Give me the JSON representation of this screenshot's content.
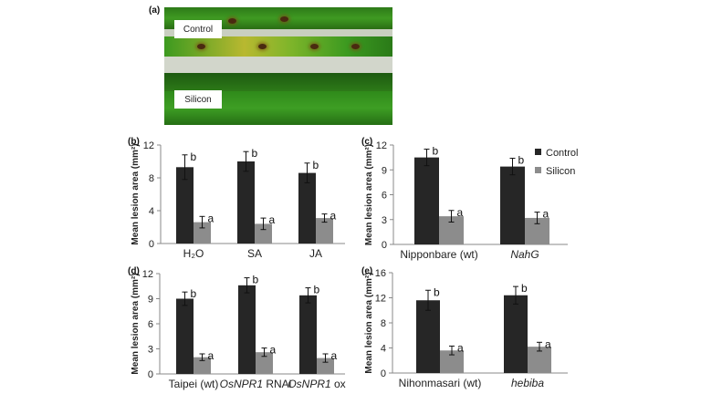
{
  "photo": {
    "panel_label": "(a)",
    "labels": {
      "control": "Control",
      "silicon": "Silicon"
    }
  },
  "legend": [
    {
      "name": "Control",
      "color": "#262626"
    },
    {
      "name": "Silicon",
      "color": "#8c8c8c"
    }
  ],
  "chart_data": [
    {
      "panel": "(b)",
      "type": "bar",
      "ylabel": "Mean lesion area (mm²)",
      "ylim": [
        0,
        12
      ],
      "yticks": [
        0,
        4,
        8,
        12
      ],
      "categories": [
        [
          {
            "text": "H₂O"
          }
        ],
        [
          {
            "text": "SA"
          }
        ],
        [
          {
            "text": "JA"
          }
        ]
      ],
      "series": [
        {
          "name": "Control",
          "values": [
            9.3,
            10.0,
            8.6
          ],
          "errors": [
            1.5,
            1.2,
            1.2
          ],
          "letters": [
            "b",
            "b",
            "b"
          ]
        },
        {
          "name": "Silicon",
          "values": [
            2.6,
            2.4,
            3.1
          ],
          "errors": [
            0.7,
            0.7,
            0.5
          ],
          "letters": [
            "a",
            "a",
            "a"
          ]
        }
      ]
    },
    {
      "panel": "(c)",
      "type": "bar",
      "ylabel": "Mean lesion area (mm²)",
      "ylim": [
        0,
        12
      ],
      "yticks": [
        0,
        3,
        6,
        9,
        12
      ],
      "legend": "top-right",
      "categories": [
        [
          {
            "text": "Nipponbare (wt)"
          }
        ],
        [
          {
            "text": "NahG",
            "italic": true
          }
        ]
      ],
      "series": [
        {
          "name": "Control",
          "values": [
            10.5,
            9.4
          ],
          "errors": [
            1.0,
            1.0
          ],
          "letters": [
            "b",
            "b"
          ]
        },
        {
          "name": "Silicon",
          "values": [
            3.4,
            3.2
          ],
          "errors": [
            0.7,
            0.7
          ],
          "letters": [
            "a",
            "a"
          ]
        }
      ]
    },
    {
      "panel": "(d)",
      "type": "bar",
      "ylabel": "Mean lesion area (mm²)",
      "ylim": [
        0,
        12
      ],
      "yticks": [
        0,
        3,
        6,
        9,
        12
      ],
      "categories": [
        [
          {
            "text": "Taipei (wt)"
          }
        ],
        [
          {
            "text": "OsNPR1",
            "italic": true
          },
          {
            "text": " RNAi"
          }
        ],
        [
          {
            "text": "OsNPR1",
            "italic": true
          },
          {
            "text": " ox"
          }
        ]
      ],
      "series": [
        {
          "name": "Control",
          "values": [
            9.0,
            10.6,
            9.4
          ],
          "errors": [
            0.8,
            0.9,
            0.9
          ],
          "letters": [
            "b",
            "b",
            "b"
          ]
        },
        {
          "name": "Silicon",
          "values": [
            2.0,
            2.6,
            1.9
          ],
          "errors": [
            0.4,
            0.5,
            0.5
          ],
          "letters": [
            "a",
            "a",
            "a"
          ]
        }
      ]
    },
    {
      "panel": "(e)",
      "type": "bar",
      "ylabel": "Mean lesion area (mm²)",
      "ylim": [
        0,
        16
      ],
      "yticks": [
        0,
        4,
        8,
        12,
        16
      ],
      "categories": [
        [
          {
            "text": "Nihonmasari (wt)"
          }
        ],
        [
          {
            "text": "hebiba",
            "italic": true
          }
        ]
      ],
      "series": [
        {
          "name": "Control",
          "values": [
            11.6,
            12.4
          ],
          "errors": [
            1.6,
            1.4
          ],
          "letters": [
            "b",
            "b"
          ]
        },
        {
          "name": "Silicon",
          "values": [
            3.6,
            4.2
          ],
          "errors": [
            0.7,
            0.7
          ],
          "letters": [
            "a",
            "a"
          ]
        }
      ]
    }
  ]
}
